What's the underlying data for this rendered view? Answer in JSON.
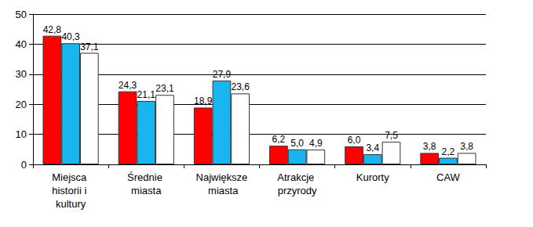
{
  "chart_data": {
    "type": "bar",
    "categories": [
      "Miejsca historii i kultury",
      "Średnie miasta",
      "Największe miasta",
      "Atrakcje przyrody",
      "Kurorty",
      "CAW"
    ],
    "series": [
      {
        "color": "#ff0000",
        "values": [
          42.8,
          24.3,
          18.9,
          6.2,
          6.0,
          3.8
        ],
        "value_labels": [
          "42,8",
          "24,3",
          "18,9",
          "6,2",
          "6,0",
          "3,8"
        ]
      },
      {
        "color": "#19b5ee",
        "values": [
          40.3,
          21.1,
          27.9,
          5.0,
          3.4,
          2.2
        ],
        "value_labels": [
          "40,3",
          "21,1",
          "27,9",
          "5,0",
          "3,4",
          "2,2"
        ]
      },
      {
        "color": "#ffffff",
        "values": [
          37.1,
          23.1,
          23.6,
          4.9,
          7.5,
          3.8
        ],
        "value_labels": [
          "37,1",
          "23,1",
          "23,6",
          "4,9",
          "7,5",
          "3,8"
        ]
      }
    ],
    "ylim": [
      0,
      50
    ],
    "yticks": [
      0,
      10,
      20,
      30,
      40,
      50
    ],
    "grid": true,
    "data_labels": true
  }
}
